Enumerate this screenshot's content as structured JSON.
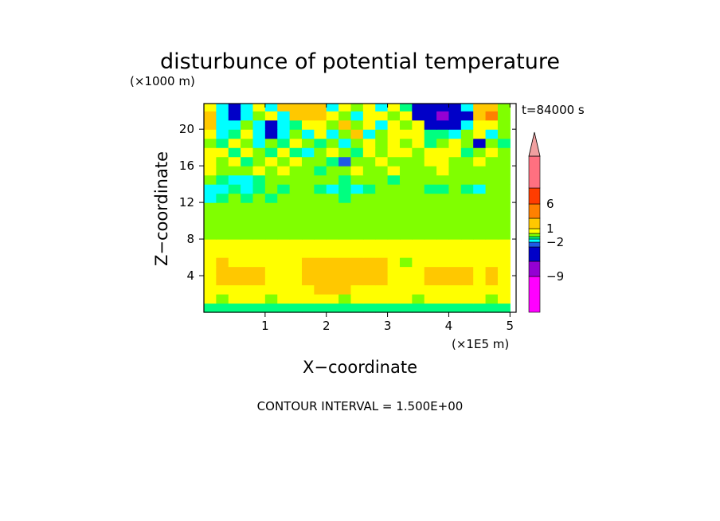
{
  "chart_data": {
    "type": "heatmap",
    "title": "disturbunce of potential temperature",
    "z_unit": "(×1000 m)",
    "x_unit": "(×1E5 m)",
    "time_label": "t=84000 s",
    "xlabel": "X−coordinate",
    "ylabel": "Z−coordinate",
    "contour_note": "CONTOUR INTERVAL = 1.500E+00",
    "xlim": [
      0.0,
      5.1
    ],
    "ylim": [
      0.0,
      22.8
    ],
    "x_ticks": [
      "1",
      "2",
      "3",
      "4",
      "5"
    ],
    "x_tick_values": [
      1,
      2,
      3,
      4,
      5
    ],
    "y_ticks": [
      "4",
      "8",
      "12",
      "16",
      "20"
    ],
    "y_tick_values": [
      4,
      8,
      12,
      16,
      20
    ],
    "colorbar": {
      "labels": [
        "6",
        "1",
        "−2",
        "−9"
      ],
      "label_values": [
        6,
        1,
        -2,
        -9
      ],
      "levels": [
        -12,
        -9,
        -6,
        -4.5,
        -3,
        -1.5,
        0,
        1.5,
        3,
        4.5,
        6,
        7.5,
        9
      ],
      "colors": [
        "#ff00ff",
        "#9400d3",
        "#0000c8",
        "#1e5ae6",
        "#00ffff",
        "#00ff80",
        "#80ff00",
        "#ffff00",
        "#ffc800",
        "#ff8000",
        "#ff3c00",
        "#ff7080",
        "#f0a0a0"
      ]
    },
    "x": [
      0.1,
      0.3,
      0.5,
      0.7,
      0.9,
      1.1,
      1.3,
      1.5,
      1.7,
      1.9,
      2.1,
      2.3,
      2.5,
      2.7,
      2.9,
      3.1,
      3.3,
      3.5,
      3.7,
      3.9,
      4.1,
      4.3,
      4.5,
      4.7,
      4.9
    ],
    "z": [
      0.5,
      1.5,
      2.5,
      3.5,
      4.5,
      5.5,
      6.5,
      7.5,
      8.5,
      9.5,
      10.5,
      11.5,
      12.5,
      13.5,
      14.5,
      15.5,
      16.5,
      17.5,
      18.5,
      19.5,
      20.5,
      21.5,
      22.5
    ],
    "values": [
      [
        -0.8,
        -0.5,
        -0.9,
        -0.6,
        -0.4,
        -0.8,
        -0.7,
        -0.5,
        -0.9,
        -0.6,
        -0.5,
        -0.8,
        -0.6,
        -0.7,
        -0.5,
        -0.9,
        -0.6,
        -0.4,
        -0.8,
        -0.7,
        -0.5,
        -0.9,
        -0.6,
        -0.5,
        -0.8
      ],
      [
        1.8,
        0.4,
        1.7,
        1.9,
        1.6,
        0.5,
        1.8,
        1.9,
        1.7,
        1.6,
        1.8,
        0.6,
        1.9,
        1.7,
        1.8,
        1.6,
        1.9,
        0.5,
        1.7,
        1.8,
        1.6,
        1.9,
        1.7,
        0.6,
        1.8
      ],
      [
        2.0,
        2.2,
        2.1,
        1.9,
        2.3,
        2.0,
        2.2,
        2.4,
        2.3,
        3.2,
        3.3,
        3.1,
        2.2,
        2.1,
        2.0,
        2.3,
        2.2,
        2.1,
        1.9,
        2.0,
        2.2,
        2.1,
        2.3,
        2.0,
        2.1
      ],
      [
        2.2,
        3.1,
        3.2,
        3.3,
        3.0,
        2.3,
        2.1,
        2.4,
        3.3,
        3.5,
        3.4,
        3.3,
        3.2,
        3.4,
        3.1,
        2.2,
        2.1,
        2.3,
        3.2,
        3.4,
        3.3,
        3.1,
        2.2,
        3.2,
        2.2
      ],
      [
        2.1,
        3.2,
        3.3,
        3.4,
        3.1,
        2.2,
        2.0,
        2.3,
        3.4,
        3.6,
        3.5,
        3.4,
        3.3,
        3.5,
        3.2,
        2.3,
        1.9,
        2.2,
        3.1,
        3.3,
        3.4,
        3.2,
        2.3,
        3.3,
        2.1
      ],
      [
        2.0,
        3.0,
        2.2,
        2.3,
        2.1,
        2.0,
        1.9,
        2.1,
        3.2,
        3.3,
        3.4,
        3.2,
        3.1,
        3.3,
        3.0,
        2.1,
        0.8,
        2.0,
        2.2,
        2.3,
        2.1,
        2.2,
        2.0,
        2.1,
        2.0
      ],
      [
        1.8,
        1.9,
        2.0,
        1.9,
        2.1,
        1.8,
        1.9,
        2.0,
        1.9,
        2.1,
        2.0,
        1.9,
        2.2,
        2.0,
        1.9,
        2.1,
        1.8,
        2.0,
        1.9,
        2.1,
        2.0,
        1.9,
        1.8,
        2.0,
        1.9
      ],
      [
        1.6,
        1.7,
        1.6,
        1.8,
        1.6,
        1.7,
        1.8,
        1.6,
        1.7,
        1.8,
        1.6,
        1.7,
        1.6,
        1.8,
        1.7,
        1.6,
        1.8,
        1.7,
        1.6,
        1.7,
        1.8,
        1.6,
        1.7,
        1.6,
        1.8
      ],
      [
        0.6,
        0.5,
        0.6,
        0.7,
        0.5,
        0.6,
        0.5,
        0.7,
        0.6,
        0.5,
        0.6,
        0.7,
        0.5,
        0.6,
        0.5,
        0.7,
        0.6,
        0.5,
        0.6,
        0.7,
        0.5,
        0.6,
        0.5,
        0.7,
        0.6
      ],
      [
        0.4,
        0.5,
        0.3,
        0.4,
        0.6,
        0.5,
        0.4,
        0.3,
        0.5,
        0.4,
        0.6,
        0.5,
        0.4,
        0.3,
        0.5,
        0.4,
        0.6,
        0.5,
        0.4,
        0.3,
        0.5,
        0.4,
        0.6,
        0.5,
        0.4
      ],
      [
        0.3,
        0.4,
        0.5,
        0.3,
        0.4,
        0.8,
        0.3,
        0.4,
        0.5,
        0.3,
        0.4,
        0.5,
        0.3,
        0.4,
        0.5,
        0.3,
        0.4,
        0.5,
        0.3,
        0.4,
        0.5,
        0.3,
        0.4,
        0.5,
        0.3
      ],
      [
        0.2,
        0.5,
        0.4,
        0.3,
        0.2,
        0.4,
        0.5,
        0.3,
        0.2,
        0.4,
        0.5,
        0.3,
        0.2,
        0.4,
        0.5,
        0.3,
        0.2,
        0.4,
        0.5,
        0.3,
        0.2,
        0.4,
        0.5,
        0.3,
        0.2
      ],
      [
        -1.7,
        -0.3,
        0.4,
        -0.2,
        0.3,
        -0.4,
        0.2,
        0.3,
        0.4,
        0.5,
        0.3,
        -0.2,
        0.4,
        0.3,
        0.2,
        0.4,
        0.3,
        0.2,
        0.4,
        0.3,
        0.2,
        0.3,
        0.4,
        0.2,
        0.3
      ],
      [
        -1.8,
        -1.6,
        -0.2,
        -1.7,
        -0.4,
        0.3,
        -0.5,
        0.6,
        0.7,
        -0.3,
        -1.6,
        -0.2,
        -1.7,
        -0.3,
        0.2,
        0.4,
        0.3,
        0.2,
        -0.3,
        -0.2,
        0.4,
        -0.2,
        -1.6,
        0.3,
        0.2
      ],
      [
        0.5,
        -0.2,
        -1.7,
        -1.8,
        -0.3,
        0.4,
        0.6,
        0.7,
        0.5,
        0.3,
        0.4,
        -0.2,
        0.3,
        0.5,
        0.4,
        -0.3,
        0.5,
        0.4,
        0.3,
        0.5,
        0.4,
        0.3,
        0.5,
        0.4,
        0.3
      ],
      [
        1.6,
        0.8,
        0.6,
        0.4,
        1.7,
        0.5,
        1.6,
        0.5,
        0.4,
        -0.2,
        0.5,
        0.6,
        1.6,
        0.4,
        0.5,
        1.7,
        0.4,
        0.6,
        0.5,
        1.6,
        0.5,
        0.6,
        0.4,
        0.5,
        0.6
      ],
      [
        2.1,
        0.7,
        1.8,
        -0.3,
        0.8,
        1.7,
        0.6,
        1.8,
        0.5,
        0.7,
        -0.4,
        -3.2,
        0.6,
        0.8,
        1.7,
        0.9,
        0.6,
        0.7,
        1.8,
        2.0,
        0.7,
        0.6,
        1.9,
        0.8,
        0.5
      ],
      [
        1.9,
        1.6,
        -0.4,
        1.7,
        0.5,
        -0.3,
        1.8,
        -0.4,
        -1.7,
        0.6,
        1.7,
        0.5,
        -0.3,
        1.7,
        0.6,
        1.9,
        2.1,
        0.7,
        1.8,
        1.9,
        2.0,
        -0.4,
        0.5,
        1.7,
        0.6
      ],
      [
        0.4,
        -0.2,
        1.7,
        0.5,
        -1.6,
        0.6,
        -0.4,
        1.8,
        0.6,
        -0.5,
        0.4,
        -1.7,
        0.5,
        1.8,
        0.4,
        1.6,
        0.5,
        1.7,
        -0.3,
        0.5,
        1.8,
        0.4,
        -4.7,
        0.6,
        -0.3
      ],
      [
        2.0,
        -1.8,
        -0.2,
        1.6,
        -2.1,
        -5.3,
        -1.9,
        0.6,
        -1.7,
        1.8,
        -1.6,
        0.5,
        3.2,
        -1.7,
        0.4,
        2.0,
        1.7,
        1.9,
        -0.2,
        -0.3,
        -1.8,
        0.5,
        1.7,
        -1.6,
        0.4
      ],
      [
        3.3,
        -1.9,
        -1.6,
        0.4,
        -1.7,
        -5.2,
        -1.8,
        -0.5,
        1.7,
        2.1,
        0.6,
        3.3,
        0.5,
        1.9,
        -1.8,
        1.9,
        0.6,
        2.0,
        -5.5,
        -5.8,
        -5.6,
        -1.9,
        1.8,
        2.1,
        0.4
      ],
      [
        3.4,
        -2.0,
        -4.8,
        -1.9,
        0.5,
        1.8,
        -1.7,
        3.2,
        3.4,
        3.6,
        1.9,
        0.7,
        -1.6,
        2.2,
        1.8,
        0.6,
        1.7,
        -5.5,
        -5.9,
        -6.1,
        -5.8,
        -5.7,
        3.2,
        4.9,
        0.5
      ],
      [
        1.8,
        -1.7,
        -4.7,
        -1.8,
        1.7,
        -1.6,
        3.1,
        3.3,
        3.5,
        3.4,
        -1.7,
        1.8,
        0.6,
        1.9,
        -1.7,
        1.8,
        -0.3,
        -5.6,
        -6.0,
        -5.9,
        -5.5,
        -1.7,
        3.1,
        3.4,
        0.6
      ]
    ]
  }
}
